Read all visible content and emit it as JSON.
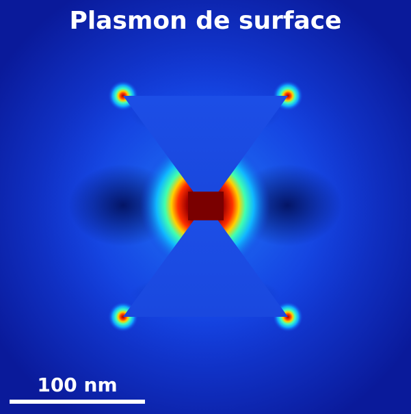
{
  "figure": {
    "title": "Plasmon de surface",
    "scale_bar_label": "100 nm"
  },
  "colors": {
    "background": "#0a1a9a",
    "field_low": "#1030d8",
    "field_mid": "#20c0ff",
    "field_high": "#8b0000",
    "text": "#ffffff"
  }
}
